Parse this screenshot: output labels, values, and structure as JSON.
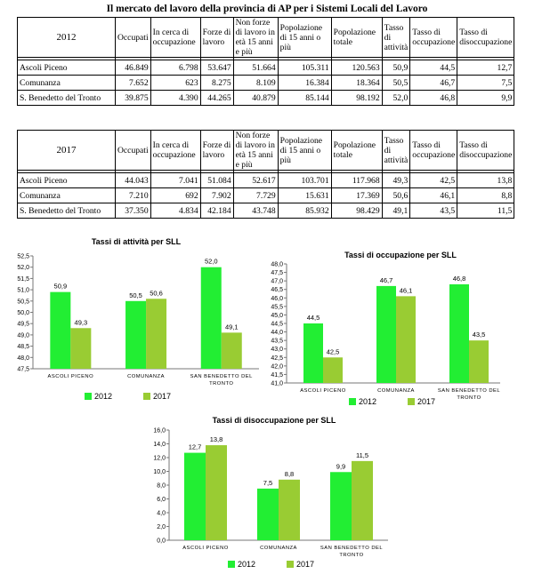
{
  "page_title": "Il mercato del lavoro della provincia di AP per i Sistemi Locali del Lavoro",
  "colors": {
    "series2012": "#22ee33",
    "series2017": "#99cc33"
  },
  "table": {
    "headers": [
      "Occupati",
      "In cerca di occupazione",
      "Forze di lavoro",
      "Non forze di lavoro in età 15 anni e più",
      "Popolazione di 15 anni o più",
      "Popolazione totale",
      "Tasso di attività",
      "Tasso di occupazione",
      "Tasso di disoccupazione"
    ],
    "blocks": [
      {
        "year": "2012",
        "rows": [
          {
            "name": "Ascoli Piceno",
            "values": [
              "46.849",
              "6.798",
              "53.647",
              "51.664",
              "105.311",
              "120.563",
              "50,9",
              "44,5",
              "12,7"
            ]
          },
          {
            "name": "Comunanza",
            "values": [
              "7.652",
              "623",
              "8.275",
              "8.109",
              "16.384",
              "18.364",
              "50,5",
              "46,7",
              "7,5"
            ]
          },
          {
            "name": "S. Benedetto del Tronto",
            "values": [
              "39.875",
              "4.390",
              "44.265",
              "40.879",
              "85.144",
              "98.192",
              "52,0",
              "46,8",
              "9,9"
            ]
          }
        ]
      },
      {
        "year": "2017",
        "rows": [
          {
            "name": "Ascoli Piceno",
            "values": [
              "44.043",
              "7.041",
              "51.084",
              "52.617",
              "103.701",
              "117.968",
              "49,3",
              "42,5",
              "13,8"
            ]
          },
          {
            "name": "Comunanza",
            "values": [
              "7.210",
              "692",
              "7.902",
              "7.729",
              "15.631",
              "17.369",
              "50,6",
              "46,1",
              "8,8"
            ]
          },
          {
            "name": "S. Benedetto del Tronto",
            "values": [
              "37.350",
              "4.834",
              "42.184",
              "43.748",
              "85.932",
              "98.429",
              "49,1",
              "43,5",
              "11,5"
            ]
          }
        ]
      }
    ]
  },
  "chart_data": [
    {
      "type": "bar",
      "title": "Tassi di attività per SLL",
      "categories": [
        "ASCOLI PICENO",
        "COMUNANZA",
        "SAN BENEDETTO DEL TRONTO"
      ],
      "series": [
        {
          "name": "2012",
          "values": [
            50.9,
            50.5,
            52.0
          ]
        },
        {
          "name": "2017",
          "values": [
            49.3,
            50.6,
            49.1
          ]
        }
      ],
      "ylim": [
        47.5,
        52.5
      ],
      "yticks": [
        "47,5",
        "48,0",
        "48,5",
        "49,0",
        "49,5",
        "50,0",
        "50,5",
        "51,0",
        "51,5",
        "52,0",
        "52,5"
      ],
      "data_labels": [
        [
          "50,9",
          "50,5",
          "52,0"
        ],
        [
          "49,3",
          "50,6",
          "49,1"
        ]
      ],
      "grid": false,
      "legend": "bottom"
    },
    {
      "type": "bar",
      "title": "Tassi di occupazione per SLL",
      "categories": [
        "ASCOLI PICENO",
        "COMUNANZA",
        "SAN BENEDETTO DEL TRONTO"
      ],
      "series": [
        {
          "name": "2012",
          "values": [
            44.5,
            46.7,
            46.8
          ]
        },
        {
          "name": "2017",
          "values": [
            42.5,
            46.1,
            43.5
          ]
        }
      ],
      "ylim": [
        41.0,
        48.0
      ],
      "yticks": [
        "41,0",
        "41,5",
        "42,0",
        "42,5",
        "43,0",
        "43,5",
        "44,0",
        "44,5",
        "45,0",
        "45,5",
        "46,0",
        "46,5",
        "47,0",
        "47,5",
        "48,0"
      ],
      "data_labels": [
        [
          "44,5",
          "46,7",
          "46,8"
        ],
        [
          "42,5",
          "46,1",
          "43,5"
        ]
      ],
      "grid": false,
      "legend": "bottom"
    },
    {
      "type": "bar",
      "title": "Tassi di disoccupazione per SLL",
      "categories": [
        "ASCOLI PICENO",
        "COMUNANZA",
        "SAN BENEDETTO DEL TRONTO"
      ],
      "series": [
        {
          "name": "2012",
          "values": [
            12.7,
            7.5,
            9.9
          ]
        },
        {
          "name": "2017",
          "values": [
            13.8,
            8.8,
            11.5
          ]
        }
      ],
      "ylim": [
        0,
        16
      ],
      "yticks": [
        "0,0",
        "2,0",
        "4,0",
        "6,0",
        "8,0",
        "10,0",
        "12,0",
        "14,0",
        "16,0"
      ],
      "data_labels": [
        [
          "12,7",
          "7,5",
          "9,9"
        ],
        [
          "13,8",
          "8,8",
          "11,5"
        ]
      ],
      "grid": false,
      "legend": "bottom"
    }
  ]
}
